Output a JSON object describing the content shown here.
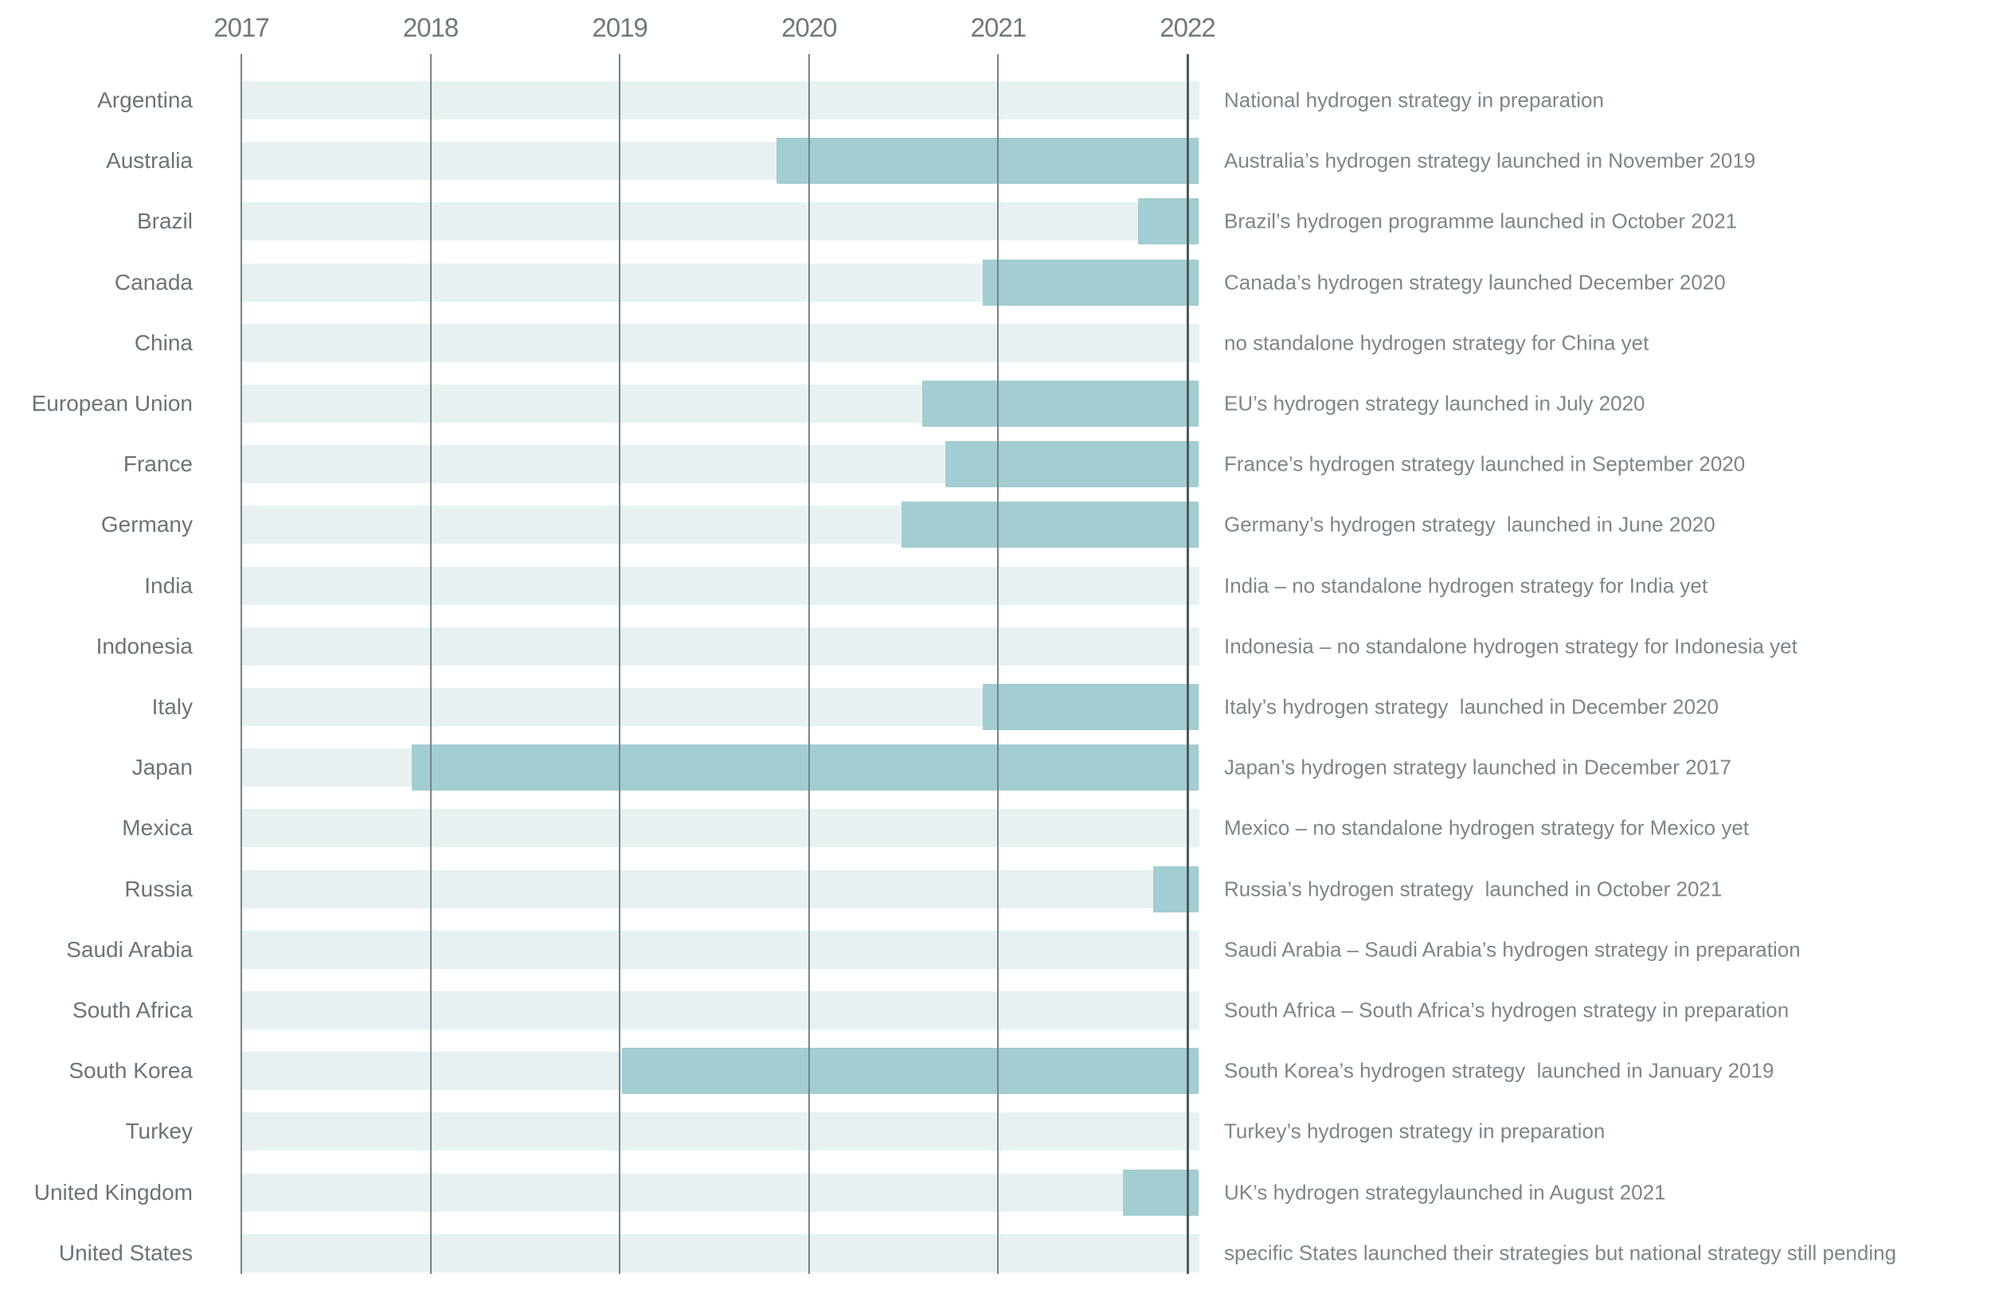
{
  "chart_data": {
    "type": "gantt",
    "title": "",
    "x_axis": {
      "tick_labels": [
        "2017",
        "2018",
        "2019",
        "2020",
        "2021",
        "2022"
      ],
      "range": [
        2017.0,
        2022.06
      ],
      "grid": true
    },
    "legend": null,
    "rows": [
      {
        "country": "Argentina",
        "bar_start_year": null,
        "bar_end_year": null,
        "annotation": "National hydrogen strategy in preparation"
      },
      {
        "country": "Australia",
        "bar_start_year": 2019.83,
        "bar_end_year": 2022.06,
        "annotation": "Australia’s hydrogen strategy launched in November 2019"
      },
      {
        "country": "Brazil",
        "bar_start_year": 2021.74,
        "bar_end_year": 2022.06,
        "annotation": "Brazil’s hydrogen programme launched in October 2021"
      },
      {
        "country": "Canada",
        "bar_start_year": 2020.92,
        "bar_end_year": 2022.06,
        "annotation": "Canada’s hydrogen strategy launched December 2020"
      },
      {
        "country": "China",
        "bar_start_year": null,
        "bar_end_year": null,
        "annotation": "no standalone hydrogen strategy for China yet"
      },
      {
        "country": "European Union",
        "bar_start_year": 2020.6,
        "bar_end_year": 2022.06,
        "annotation": "EU’s hydrogen strategy launched in July 2020"
      },
      {
        "country": "France",
        "bar_start_year": 2020.72,
        "bar_end_year": 2022.06,
        "annotation": "France’s hydrogen strategy launched in September 2020"
      },
      {
        "country": "Germany",
        "bar_start_year": 2020.49,
        "bar_end_year": 2022.06,
        "annotation": "Germany’s hydrogen strategy  launched in June 2020"
      },
      {
        "country": "India",
        "bar_start_year": null,
        "bar_end_year": null,
        "annotation": "India – no standalone hydrogen strategy for India yet"
      },
      {
        "country": "Indonesia",
        "bar_start_year": null,
        "bar_end_year": null,
        "annotation": "Indonesia – no standalone hydrogen strategy for Indonesia yet"
      },
      {
        "country": "Italy",
        "bar_start_year": 2020.92,
        "bar_end_year": 2022.06,
        "annotation": "Italy’s hydrogen strategy  launched in December 2020"
      },
      {
        "country": "Japan",
        "bar_start_year": 2017.9,
        "bar_end_year": 2022.06,
        "annotation": "Japan’s hydrogen strategy launched in December 2017"
      },
      {
        "country": "Mexica",
        "bar_start_year": null,
        "bar_end_year": null,
        "annotation": "Mexico – no standalone hydrogen strategy for Mexico yet"
      },
      {
        "country": "Russia",
        "bar_start_year": 2021.82,
        "bar_end_year": 2022.06,
        "annotation": "Russia’s hydrogen strategy  launched in October 2021"
      },
      {
        "country": "Saudi Arabia",
        "bar_start_year": null,
        "bar_end_year": null,
        "annotation": "Saudi Arabia – Saudi Arabia’s hydrogen strategy in preparation"
      },
      {
        "country": "South Africa",
        "bar_start_year": null,
        "bar_end_year": null,
        "annotation": "South Africa – South Africa’s hydrogen strategy in preparation"
      },
      {
        "country": "South Korea",
        "bar_start_year": 2019.01,
        "bar_end_year": 2022.06,
        "annotation": "South Korea’s hydrogen strategy  launched in January 2019"
      },
      {
        "country": "Turkey",
        "bar_start_year": null,
        "bar_end_year": null,
        "annotation": "Turkey’s hydrogen strategy in preparation"
      },
      {
        "country": "United Kingdom",
        "bar_start_year": 2021.66,
        "bar_end_year": 2022.06,
        "annotation": "UK’s hydrogen strategylaunched in August 2021"
      },
      {
        "country": "United States",
        "bar_start_year": null,
        "bar_end_year": null,
        "annotation": "specific States launched their strategies but national strategy still pending"
      }
    ]
  },
  "colors": {
    "row_band": "#e8f1f2",
    "bar": "#a2cdd1",
    "gridline": "#75828a",
    "gridline_last": "#4e5a60",
    "year_label": "#6f797d",
    "country_label": "#6b7478",
    "annotation": "#7d868a"
  }
}
